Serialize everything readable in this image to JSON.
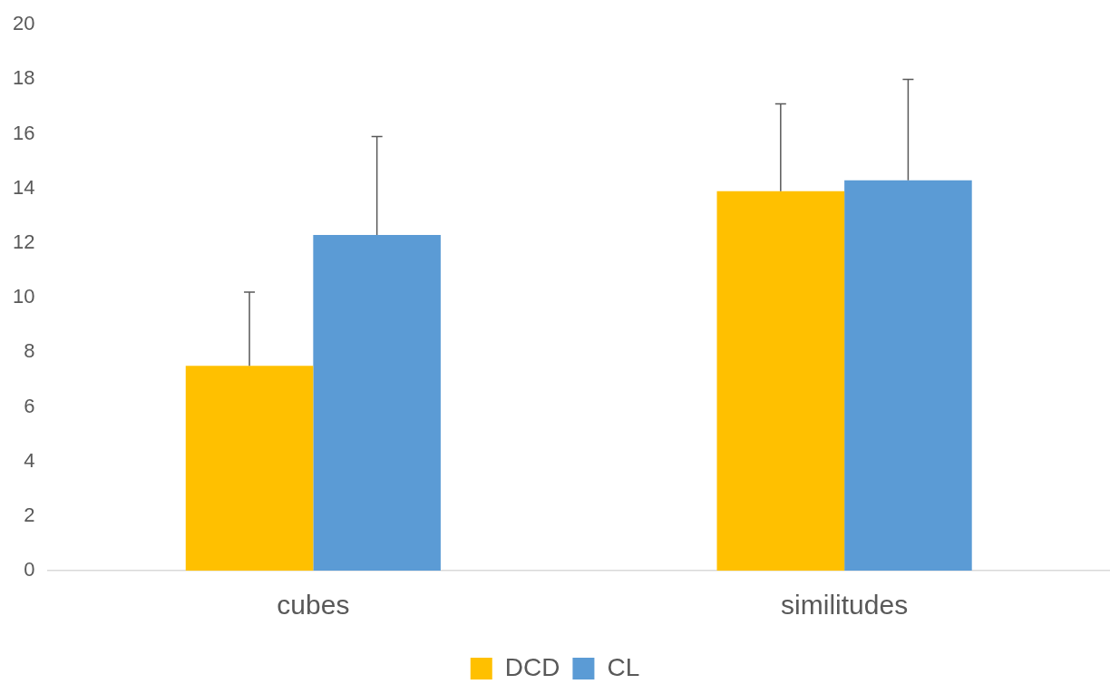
{
  "chart_data": {
    "type": "bar",
    "categories": [
      "cubes",
      "similitudes"
    ],
    "series": [
      {
        "name": "DCD",
        "color": "#ffc000",
        "values": [
          7.5,
          13.9
        ],
        "errors": [
          [
            7.5,
            10.2
          ],
          [
            13.9,
            17.1
          ]
        ]
      },
      {
        "name": "CL",
        "color": "#5b9bd5",
        "values": [
          12.3,
          14.3
        ],
        "errors": [
          [
            12.3,
            15.9
          ],
          [
            14.3,
            18.0
          ]
        ]
      }
    ],
    "ylim": [
      0,
      20
    ],
    "yticks": [
      0,
      2,
      4,
      6,
      8,
      10,
      12,
      14,
      16,
      18,
      20
    ],
    "grid": false,
    "legend": "bottom"
  }
}
